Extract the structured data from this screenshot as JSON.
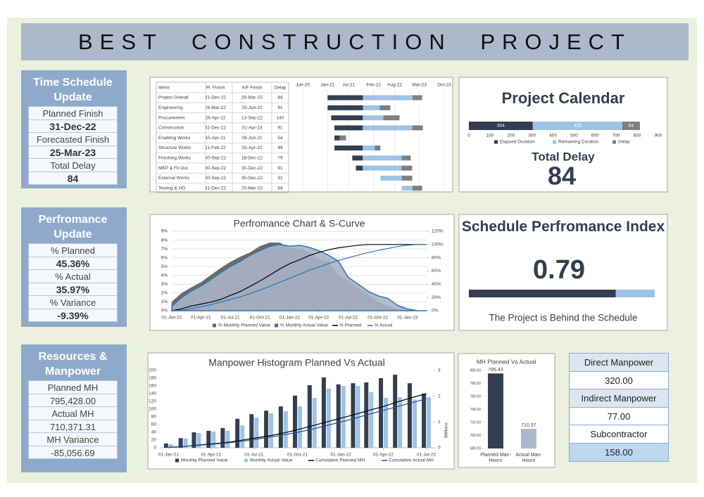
{
  "header": {
    "title": "BEST CONSTRUCTION PROJECT"
  },
  "time_schedule": {
    "title": "Time Schedule Update",
    "rows": [
      {
        "label": "Planned Finish",
        "value": "31-Dec-22"
      },
      {
        "label": "Forecasted Finish",
        "value": "25-Mar-23"
      },
      {
        "label": "Total Delay",
        "value": "84"
      }
    ]
  },
  "performance": {
    "title": "Perfromance Update",
    "rows": [
      {
        "label": "% Planned",
        "value": "45.36%"
      },
      {
        "label": "% Actual",
        "value": "35.97%"
      },
      {
        "label": "% Variance",
        "value": "-9.39%"
      }
    ]
  },
  "resources": {
    "title": "Resources & Manpower",
    "rows": [
      {
        "label": "Planned MH",
        "value": "795,428.00"
      },
      {
        "label": "Actual MH",
        "value": "710,371.31"
      },
      {
        "label": "MH Variance",
        "value": "-85,056.69"
      }
    ]
  },
  "schedule_table": {
    "columns": [
      "Items",
      "Pl. Finish",
      "A/F Finish",
      "Delay"
    ],
    "rows": [
      [
        "Project Overall",
        "31-Dec-22",
        "25-Mar-23",
        "84"
      ],
      [
        "Engineering",
        "26-Mar-22",
        "25-Jun-22",
        "91"
      ],
      [
        "Procurement",
        "26-Apr-22",
        "13-Sep-22",
        "140"
      ],
      [
        "Construction",
        "31-Dec-22",
        "01-Apr-23",
        "91"
      ],
      [
        "Enabling Works",
        "15-Apr-21",
        "08-Jun-21",
        "54"
      ],
      [
        "Structure Works",
        "11-Feb-22",
        "01-Apr-22",
        "49"
      ],
      [
        "Finishing Works",
        "30-Sep-22",
        "18-Dec-22",
        "79"
      ],
      [
        "MEP & Fit Out",
        "30-Sep-22",
        "30-Dec-22",
        "91"
      ],
      [
        "External Works",
        "30-Sep-22",
        "30-Dec-22",
        "91"
      ],
      [
        "Testing & HO",
        "31-Dec-22",
        "25-Mar-23",
        "84"
      ]
    ]
  },
  "project_calendar": {
    "title": "Project Calendar",
    "total_delay_label": "Total Delay",
    "total_delay": 84
  },
  "spi": {
    "title": "Schedule Perfromance Index",
    "value": 0.79,
    "note": "The Project is Behind the Schedule"
  },
  "manpower_table": {
    "rows": [
      {
        "label": "Direct Manpower",
        "value": "320.00"
      },
      {
        "label": "Indirect Manpower",
        "value": "77.00"
      },
      {
        "label": "Subcontractor",
        "value": "158.00"
      }
    ]
  },
  "chart_data": [
    {
      "type": "gantt",
      "start": [
        "2021-01-01",
        "2021-01-01",
        "2021-02-01",
        "2021-03-01",
        "2021-03-01",
        "2021-03-01",
        "2021-08-01",
        "2021-09-01",
        "2022-04-01",
        "2022-10-01"
      ],
      "series": [
        {
          "color": "#333f50",
          "values": [
            304,
            304,
            272,
            244,
            45,
            244,
            91,
            60,
            0,
            0
          ]
        },
        {
          "color": "#9dc3e6",
          "values": [
            425,
            145,
            176,
            425,
            0,
            102,
            333,
            333,
            182,
            91
          ]
        },
        {
          "color": "#7f7f7f",
          "values": [
            84,
            91,
            140,
            91,
            54,
            49,
            79,
            91,
            91,
            84
          ]
        }
      ],
      "xlim": [
        "2020-06-01",
        "2023-10-01"
      ],
      "xticks": [
        {
          "value": "2020-06-01",
          "label": "Jun-20"
        },
        {
          "value": "2021-01-01",
          "label": "Jan-21"
        },
        {
          "value": "2021-07-01",
          "label": "Jul-21"
        },
        {
          "value": "2022-02-01",
          "label": "Feb-22"
        },
        {
          "value": "2022-08-01",
          "label": "Aug-22"
        },
        {
          "value": "2023-03-01",
          "label": "Mar-23"
        },
        {
          "value": "2023-10-01",
          "label": "Oct-23"
        }
      ],
      "grid": true
    },
    {
      "type": "stacked_bar",
      "series": [
        {
          "name": "Elapsed Duration",
          "color": "#333f50",
          "values": [
            304
          ]
        },
        {
          "name": "Remaining Duration",
          "color": "#9dc3e6",
          "values": [
            425
          ]
        },
        {
          "name": "Delay",
          "color": "#7f7f7f",
          "values": [
            84
          ]
        }
      ],
      "xlim": [
        0,
        900
      ],
      "xticks": [
        0,
        100,
        200,
        300,
        400,
        500,
        600,
        700,
        800,
        900
      ]
    },
    {
      "type": "combo",
      "title": "Perfromance Chart & S-Curve",
      "x": [
        "2021-01-01",
        "2021-02-01",
        "2021-03-01",
        "2021-04-01",
        "2021-05-01",
        "2021-06-01",
        "2021-07-01",
        "2021-08-01",
        "2021-09-01",
        "2021-10-01",
        "2021-11-01",
        "2021-12-01",
        "2022-01-01",
        "2022-02-01",
        "2022-03-01",
        "2022-04-01",
        "2022-05-01",
        "2022-06-01",
        "2022-07-01",
        "2022-08-01",
        "2022-09-01",
        "2022-10-01",
        "2022-11-01",
        "2022-12-01",
        "2023-01-01",
        "2023-02-01",
        "2023-03-01"
      ],
      "series": [
        {
          "name": "% Monthly Planned Value",
          "type": "area",
          "color": "#6b6b6b",
          "values": [
            1.0,
            2.0,
            2.6,
            3.2,
            4.0,
            4.8,
            5.5,
            6.1,
            6.6,
            7.3,
            7.7,
            7.7,
            7.1,
            7.0,
            6.7,
            5.8,
            5.6,
            4.0,
            3.4,
            2.6,
            1.8,
            1.0,
            0.5,
            0.2,
            0,
            0,
            0
          ]
        },
        {
          "name": "% Monthly Actual Value",
          "type": "area",
          "color": "#2e75b6",
          "values": [
            0.5,
            1.5,
            2.2,
            2.8,
            3.5,
            4.3,
            5.0,
            5.6,
            6.3,
            6.8,
            7.3,
            7.5,
            7.3,
            7.4,
            7.2,
            6.8,
            6.3,
            5.6,
            3.8,
            3.0,
            2.2,
            1.7,
            1.4,
            0.6,
            0.2,
            0,
            0
          ]
        },
        {
          "name": "% Planned",
          "type": "line",
          "axis": "y2",
          "color": "#000000",
          "values": [
            0,
            3,
            7,
            10,
            13,
            17,
            23,
            29,
            37,
            45,
            54,
            63,
            71,
            77,
            83,
            88,
            92,
            95,
            97,
            99,
            100,
            100,
            100,
            100,
            100,
            100,
            100
          ]
        },
        {
          "name": "% Actual",
          "type": "line",
          "axis": "y2",
          "color": "#2e75b6",
          "values": [
            0,
            1,
            3,
            6,
            9,
            13,
            17,
            21,
            26,
            31,
            37,
            43,
            49,
            55,
            61,
            66,
            71,
            76,
            80,
            84,
            88,
            91,
            94,
            97,
            99,
            100,
            100
          ]
        }
      ],
      "xlim": [
        "2021-01-01",
        "2023-03-01"
      ],
      "xticks": [
        {
          "value": "2021-01-01",
          "label": "01-Jan-21"
        },
        {
          "value": "2021-04-01",
          "label": "01-Apr-21"
        },
        {
          "value": "2021-07-01",
          "label": "01-Jul-21"
        },
        {
          "value": "2021-10-01",
          "label": "01-Oct-21"
        },
        {
          "value": "2022-01-01",
          "label": "01-Jan-22"
        },
        {
          "value": "2022-04-01",
          "label": "01-Apr-22"
        },
        {
          "value": "2022-07-01",
          "label": "01-Jul-22"
        },
        {
          "value": "2022-10-01",
          "label": "01-Oct-22"
        },
        {
          "value": "2023-01-01",
          "label": "01-Jan-23"
        }
      ],
      "ylim": [
        0,
        9
      ],
      "yticks": [
        {
          "value": 0,
          "label": "0%"
        },
        {
          "value": 1,
          "label": "1%"
        },
        {
          "value": 2,
          "label": "2%"
        },
        {
          "value": 3,
          "label": "3%"
        },
        {
          "value": 4,
          "label": "4%"
        },
        {
          "value": 5,
          "label": "5%"
        },
        {
          "value": 6,
          "label": "6%"
        },
        {
          "value": 7,
          "label": "7%"
        },
        {
          "value": 8,
          "label": "8%"
        },
        {
          "value": 9,
          "label": "9%"
        }
      ],
      "y2lim": [
        0,
        120
      ],
      "y2ticks": [
        {
          "value": 0,
          "label": "0%"
        },
        {
          "value": 20,
          "label": "20%"
        },
        {
          "value": 40,
          "label": "40%"
        },
        {
          "value": 60,
          "label": "60%"
        },
        {
          "value": 80,
          "label": "80%"
        },
        {
          "value": 100,
          "label": "100%"
        },
        {
          "value": 120,
          "label": "120%"
        }
      ],
      "grid": true
    },
    {
      "type": "combo",
      "title": "Manpower Histogram Planned Vs Actual",
      "x": [
        "2021-01-01",
        "2021-02-01",
        "2021-03-01",
        "2021-04-01",
        "2021-05-01",
        "2021-06-01",
        "2021-07-01",
        "2021-08-01",
        "2021-09-01",
        "2021-10-01",
        "2021-11-01",
        "2021-12-01",
        "2022-01-01",
        "2022-02-01",
        "2022-03-01",
        "2022-04-01",
        "2022-05-01",
        "2022-06-01",
        "2022-07-01"
      ],
      "series": [
        {
          "name": "Monthly Planned Value",
          "type": "bar",
          "color": "#333f50",
          "values": [
            11,
            25,
            40,
            44,
            51,
            75,
            87,
            96,
            107,
            135,
            162,
            182,
            164,
            167,
            169,
            180,
            189,
            167,
            140
          ]
        },
        {
          "name": "Monthly Actual Value",
          "type": "bar",
          "color": "#9dc3e6",
          "values": [
            9,
            24,
            38,
            42,
            44,
            58,
            78,
            89,
            95,
            107,
            129,
            153,
            160,
            160,
            144,
            129,
            131,
            125,
            131
          ]
        },
        {
          "name": "Cumulative Planned MH",
          "type": "line",
          "axis": "y2",
          "color": "#000000",
          "values": [
            0.02,
            0.05,
            0.1,
            0.15,
            0.2,
            0.28,
            0.37,
            0.46,
            0.57,
            0.7,
            0.85,
            1.0,
            1.15,
            1.3,
            1.45,
            1.6,
            1.78,
            1.95,
            2.1
          ]
        },
        {
          "name": "Cumulative Actual MH",
          "type": "line",
          "axis": "y2",
          "color": "#1f4e99",
          "values": [
            0.02,
            0.05,
            0.09,
            0.13,
            0.18,
            0.24,
            0.32,
            0.41,
            0.5,
            0.6,
            0.72,
            0.86,
            1.0,
            1.15,
            1.3,
            1.45,
            1.6,
            1.75,
            1.9
          ]
        }
      ],
      "xlim": [
        "2020-12-15",
        "2022-07-15"
      ],
      "xticks": [
        {
          "value": "2021-01-01",
          "label": "01-Jan-21"
        },
        {
          "value": "2021-04-01",
          "label": "01-Apr-21"
        },
        {
          "value": "2021-07-01",
          "label": "01-Jul-21"
        },
        {
          "value": "2021-10-01",
          "label": "01-Oct-21"
        },
        {
          "value": "2022-01-01",
          "label": "01-Jan-22"
        },
        {
          "value": "2022-04-01",
          "label": "01-Apr-22"
        },
        {
          "value": "2022-07-01",
          "label": "01-Jul-22"
        }
      ],
      "ylim": [
        0,
        200
      ],
      "yticks": [
        0,
        20,
        40,
        60,
        80,
        100,
        120,
        140,
        160,
        180,
        200
      ],
      "y2lim": [
        0,
        3
      ],
      "y2ticks": [
        0,
        1,
        2,
        3
      ],
      "y2label": "Millions",
      "grid": false
    },
    {
      "type": "bar",
      "title": "MH Planned Vs Actual",
      "categories": [
        "Planned Man-Hours",
        "Actual Man-Hours"
      ],
      "values": [
        795.43,
        710.37
      ],
      "colors": [
        "#333f50",
        "#adb9ca"
      ],
      "ylim": [
        680,
        800
      ],
      "yticks": [
        {
          "value": 680,
          "label": "680.00"
        },
        {
          "value": 700,
          "label": "700.00"
        },
        {
          "value": 720,
          "label": "720.00"
        },
        {
          "value": 740,
          "label": "740.00"
        },
        {
          "value": 760,
          "label": "760.00"
        },
        {
          "value": 780,
          "label": "780.00"
        },
        {
          "value": 800,
          "label": "800.00"
        }
      ]
    }
  ]
}
